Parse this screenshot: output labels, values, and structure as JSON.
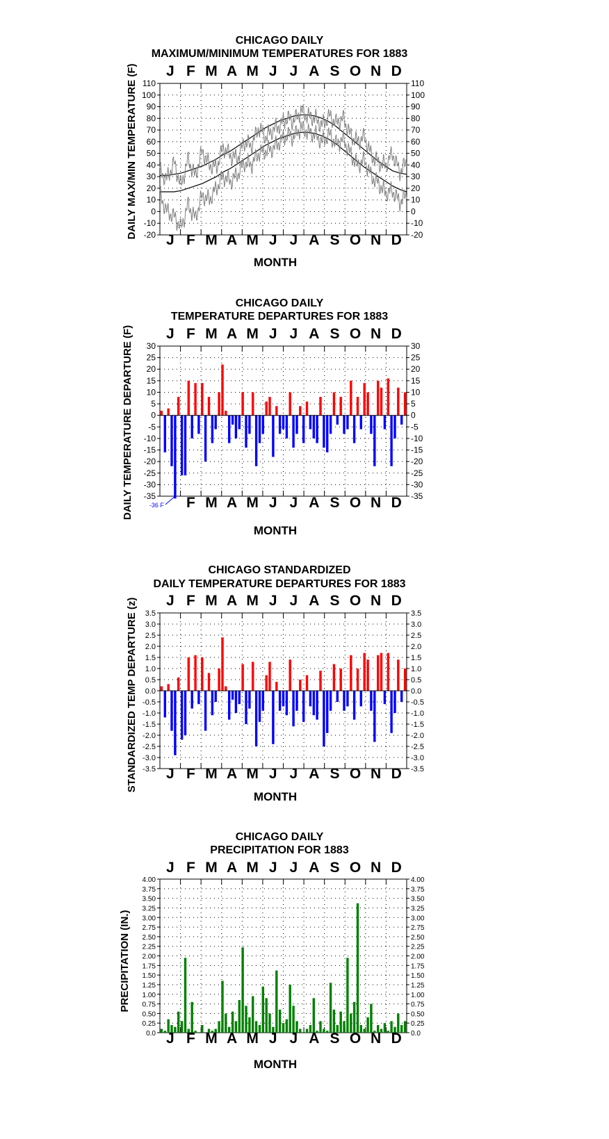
{
  "months": [
    "J",
    "F",
    "M",
    "A",
    "M",
    "J",
    "J",
    "A",
    "S",
    "O",
    "N",
    "D"
  ],
  "xlabel": "MONTH",
  "colors": {
    "actual": "#7f7f7f",
    "normal": "#000000",
    "positive": "#ff0000",
    "negative": "#0000ff",
    "precip": "#008000",
    "annotation": "#0000ff"
  },
  "chart_data": [
    {
      "id": "maxmin",
      "type": "line",
      "title": [
        "CHICAGO DAILY",
        "MAXIMUM/MINIMUM TEMPERATURES FOR 1883"
      ],
      "ylabel": "DAILY MAX/MIN TEMPERATURE (F)",
      "ylim": [
        -20,
        110
      ],
      "yticks": [
        "110",
        "100",
        "90",
        "80",
        "70",
        "60",
        "50",
        "40",
        "30",
        "20",
        "10",
        "0",
        "-10",
        "-20"
      ],
      "grid": true,
      "series": [
        {
          "role": "normal_max",
          "values": [
            31,
            31,
            32,
            33,
            35,
            37,
            39,
            42,
            45,
            49,
            52,
            56,
            60,
            64,
            68,
            72,
            75,
            78,
            80,
            82,
            83,
            83,
            82,
            80,
            77,
            73,
            68,
            63,
            58,
            53,
            48,
            43,
            39,
            35,
            33,
            32
          ]
        },
        {
          "role": "normal_min",
          "values": [
            17,
            17,
            17,
            18,
            20,
            22,
            24,
            27,
            30,
            34,
            37,
            41,
            45,
            49,
            53,
            57,
            60,
            63,
            65,
            67,
            68,
            68,
            67,
            65,
            62,
            58,
            53,
            48,
            43,
            38,
            34,
            30,
            26,
            22,
            19,
            17
          ]
        },
        {
          "role": "observed_max",
          "values": [
            34,
            28,
            42,
            22,
            45,
            30,
            52,
            40,
            38,
            55,
            48,
            46,
            60,
            56,
            72,
            64,
            70,
            74,
            80,
            78,
            86,
            82,
            80,
            74,
            82,
            76,
            80,
            66,
            60,
            64,
            48,
            42,
            40,
            50,
            34,
            42
          ]
        },
        {
          "role": "observed_min",
          "values": [
            14,
            0,
            -4,
            -14,
            6,
            -6,
            14,
            10,
            20,
            30,
            26,
            32,
            42,
            40,
            50,
            52,
            54,
            60,
            66,
            64,
            72,
            68,
            66,
            60,
            66,
            58,
            62,
            50,
            40,
            44,
            30,
            24,
            16,
            18,
            8,
            14
          ]
        }
      ]
    },
    {
      "id": "departures",
      "type": "bar",
      "title": [
        "CHICAGO DAILY",
        "TEMPERATURE DEPARTURES FOR 1883"
      ],
      "ylabel": "DAILY TEMPERATURE DEPARTURE (F)",
      "ylim": [
        -35,
        30
      ],
      "yticks": [
        "30",
        "25",
        "20",
        "15",
        "10",
        "5",
        "0",
        "-5",
        "-10",
        "-15",
        "-20",
        "-25",
        "-30",
        "-35"
      ],
      "annotation": "-36 F",
      "grid": true,
      "values": [
        2,
        -16,
        3,
        -22,
        -36,
        8,
        -26,
        -26,
        15,
        -10,
        14,
        -8,
        14,
        -20,
        8,
        -12,
        -6,
        10,
        22,
        2,
        -12,
        -4,
        -10,
        -6,
        10,
        -14,
        -8,
        10,
        -22,
        -12,
        -8,
        6,
        8,
        -18,
        4,
        -8,
        -6,
        -10,
        10,
        -14,
        -8,
        4,
        -12,
        6,
        -6,
        -10,
        -12,
        8,
        -14,
        -16,
        -8,
        10,
        -4,
        8,
        -8,
        -6,
        15,
        -12,
        8,
        -6,
        14,
        10,
        -8,
        -22,
        15,
        12,
        -6,
        16,
        -22,
        -10,
        12,
        -4,
        10
      ]
    },
    {
      "id": "standardized",
      "type": "bar",
      "title": [
        "CHICAGO STANDARDIZED",
        "DAILY TEMPERATURE DEPARTURES FOR 1883"
      ],
      "ylabel": "STANDARDIZED TEMP DEPARTURE (z)",
      "ylim": [
        -3.5,
        3.5
      ],
      "yticks": [
        "3.5",
        "3.0",
        "2.5",
        "2.0",
        "1.5",
        "1.0",
        "0.5",
        "0.0",
        "-0.5",
        "-1.0",
        "-1.5",
        "-2.0",
        "-2.5",
        "-3.0",
        "-3.5"
      ],
      "grid": true,
      "values": [
        0.2,
        -1.2,
        0.3,
        -1.8,
        -2.9,
        0.6,
        -2.2,
        -2.0,
        1.5,
        -0.8,
        1.6,
        -0.6,
        1.5,
        -1.8,
        0.8,
        -1.1,
        -0.5,
        1.0,
        2.4,
        0.2,
        -1.3,
        -0.4,
        -1.0,
        -0.6,
        1.2,
        -1.5,
        -0.8,
        1.3,
        -2.5,
        -1.4,
        -0.9,
        0.7,
        1.3,
        -2.4,
        0.4,
        -0.9,
        -0.7,
        -1.1,
        1.4,
        -1.6,
        -0.9,
        0.5,
        -1.4,
        0.7,
        -0.7,
        -1.1,
        -1.3,
        0.9,
        -2.5,
        -1.9,
        -0.9,
        1.2,
        -0.5,
        1.0,
        -0.9,
        -0.7,
        1.6,
        -1.3,
        1.0,
        -0.7,
        1.7,
        1.4,
        -0.9,
        -2.3,
        1.6,
        1.7,
        -0.6,
        1.7,
        -1.9,
        -1.0,
        1.4,
        -0.5,
        1.0
      ]
    },
    {
      "id": "precip",
      "type": "bar",
      "title": [
        "CHICAGO DAILY",
        "PRECIPITATION FOR 1883"
      ],
      "ylabel": "PRECIPITATION (IN.)",
      "ylim": [
        0,
        4
      ],
      "yticks": [
        "4.00",
        "3.75",
        "3.50",
        "3.25",
        "3.00",
        "2.75",
        "2.50",
        "2.25",
        "2.00",
        "1.75",
        "1.50",
        "1.25",
        "1.00",
        "0.75",
        "0.50",
        "0.25",
        "0.0"
      ],
      "grid": true,
      "values": [
        0.1,
        0.05,
        0.35,
        0.2,
        0.15,
        0.55,
        0.3,
        1.95,
        0.1,
        0.8,
        0.05,
        0,
        0.2,
        0,
        0.1,
        0.05,
        0.1,
        0.3,
        1.35,
        0.5,
        0.15,
        0.55,
        0.3,
        0.85,
        2.22,
        0.7,
        0.4,
        0.95,
        0.3,
        0.2,
        1.2,
        0.9,
        0.5,
        0.15,
        1.62,
        0.6,
        0.25,
        0.35,
        1.25,
        0.7,
        0.3,
        0.1,
        0,
        0.1,
        0.2,
        0.9,
        0.05,
        0.3,
        0.1,
        0.05,
        1.3,
        0.6,
        0.2,
        0.55,
        0.3,
        1.95,
        0.5,
        0.8,
        3.37,
        0.2,
        0.1,
        0.4,
        0.75,
        0.05,
        0.2,
        0.1,
        0.25,
        0.05,
        0.3,
        0.15,
        0.5,
        0.2,
        0.3
      ]
    }
  ]
}
